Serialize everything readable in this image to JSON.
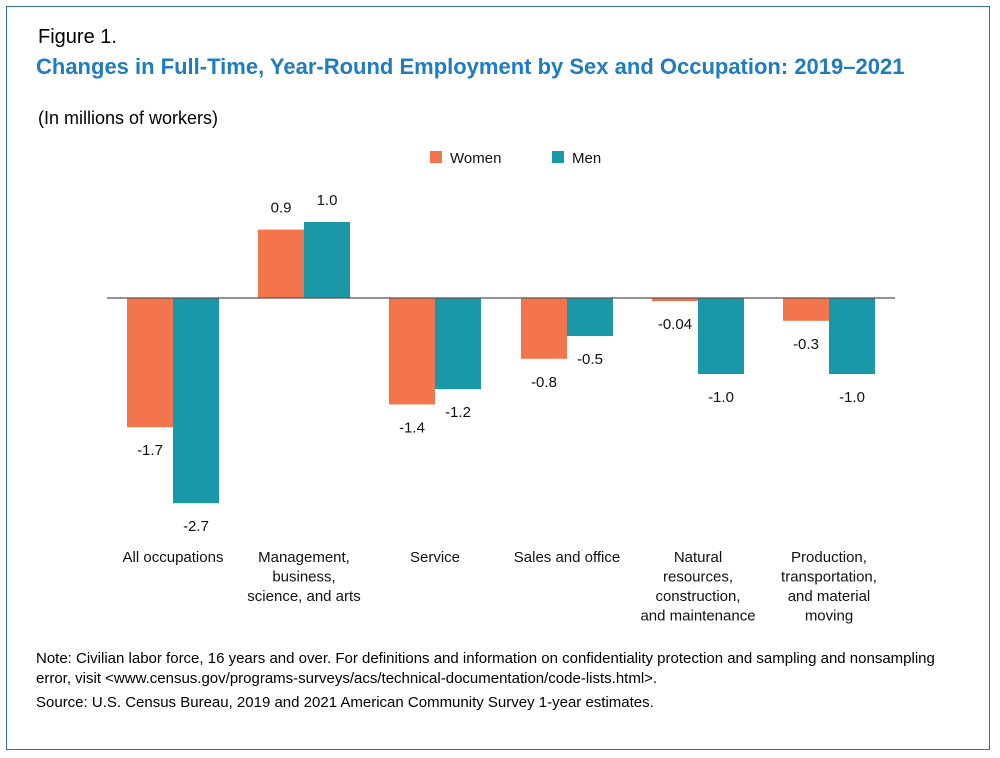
{
  "figure_label": "Figure 1.",
  "title": "Changes in Full-Time, Year-Round Employment by Sex and Occupation: 2019–2021",
  "subtitle": "(In millions of workers)",
  "note": "Note: Civilian labor force, 16 years and over. For definitions and information on confidentiality protection and sampling and nonsampling error, visit <www.census.gov/programs-surveys/acs/technical-documentation/code-lists.html>.",
  "source": "Source: U.S. Census Bureau, 2019 and 2021 American Community Survey 1-year estimates.",
  "chart_data": {
    "type": "bar",
    "title": "Changes in Full-Time, Year-Round Employment by Sex and Occupation: 2019–2021",
    "ylabel": "",
    "xlabel": "",
    "legend_position": "top-center",
    "grid": false,
    "ylim": [
      -3.0,
      1.1
    ],
    "categories": [
      [
        "All occupations"
      ],
      [
        "Management,",
        "business,",
        "science, and arts"
      ],
      [
        "Service"
      ],
      [
        "Sales and office"
      ],
      [
        "Natural",
        "resources,",
        "construction,",
        "and maintenance"
      ],
      [
        "Production,",
        "transportation,",
        "and material",
        "moving"
      ]
    ],
    "series": [
      {
        "name": "Women",
        "color": "#f4744b",
        "values": [
          -1.7,
          0.9,
          -1.4,
          -0.8,
          -0.04,
          -0.3
        ],
        "labels": [
          "-1.7",
          "0.9",
          "-1.4",
          "-0.8",
          "-0.04",
          "-0.3"
        ]
      },
      {
        "name": "Men",
        "color": "#1a98a8",
        "values": [
          -2.7,
          1.0,
          -1.2,
          -0.5,
          -1.0,
          -1.0
        ],
        "labels": [
          "-2.7",
          "1.0",
          "-1.2",
          "-0.5",
          "-1.0",
          "-1.0"
        ]
      }
    ]
  }
}
